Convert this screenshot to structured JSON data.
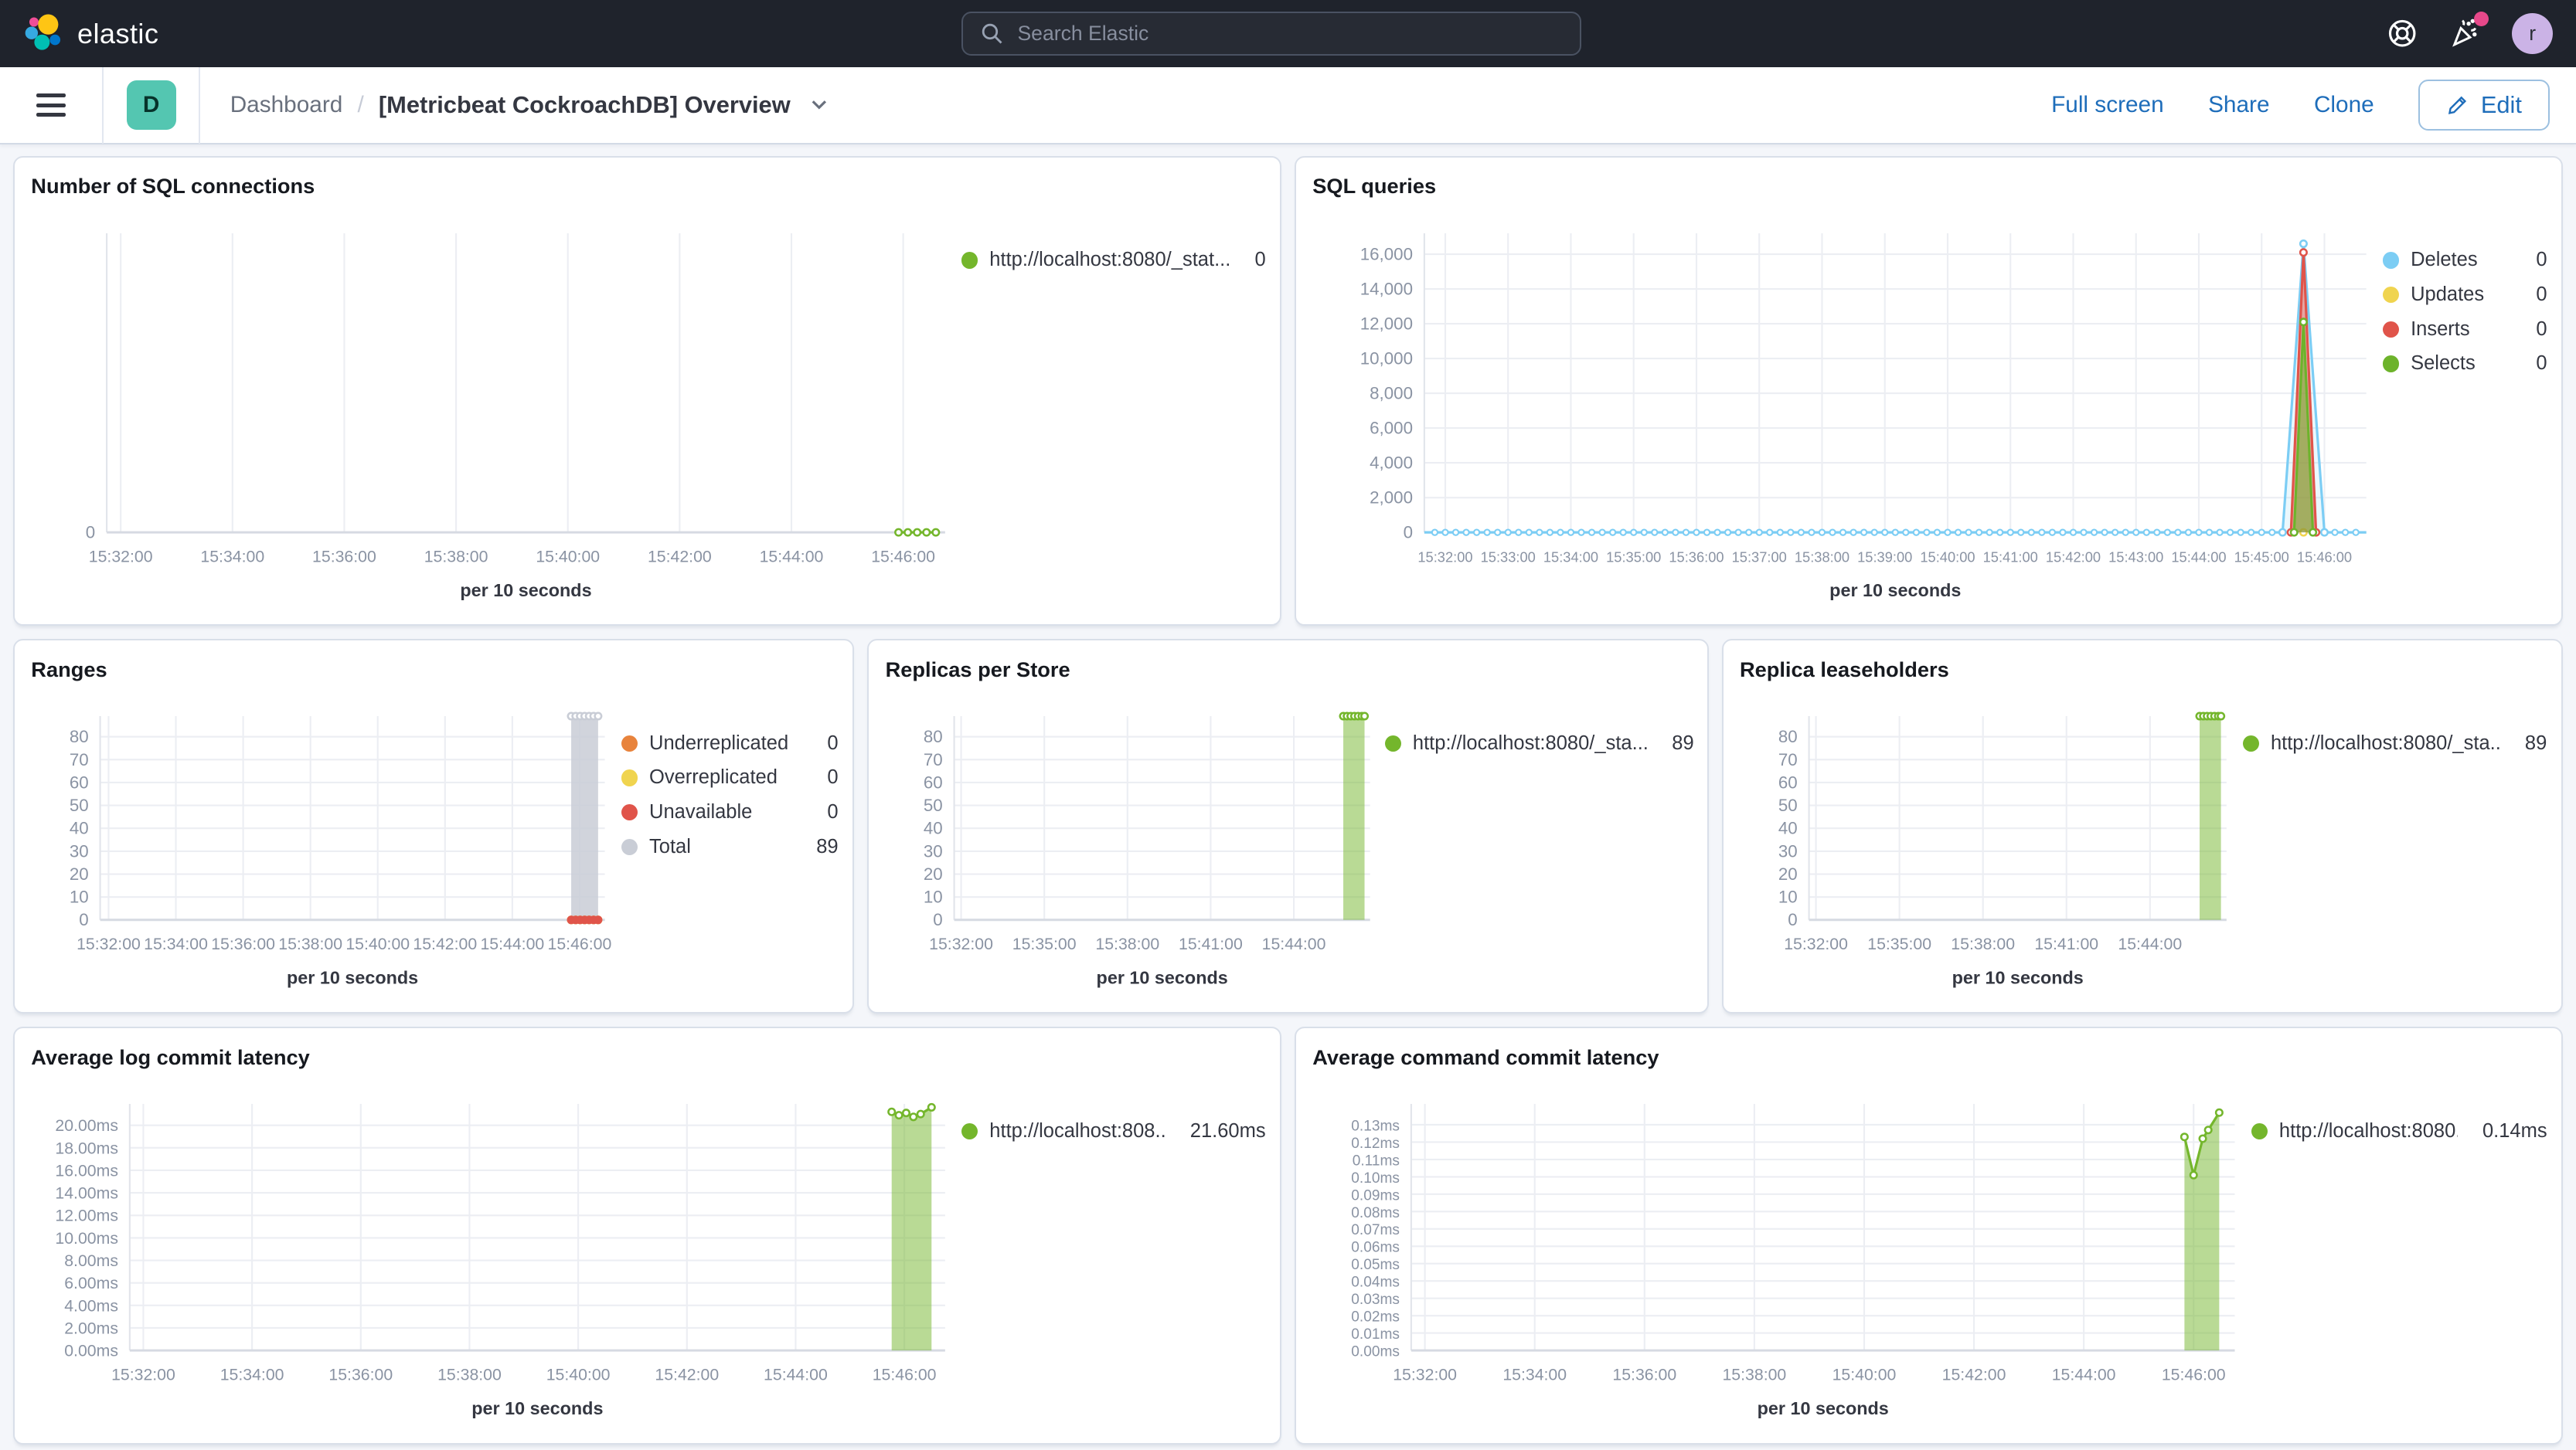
{
  "header": {
    "brand": "elastic",
    "search_placeholder": "Search Elastic",
    "avatar_initial": "r",
    "colors": {
      "header_bg": "#1F232C",
      "notification_dot": "#E7488A",
      "avatar_bg": "#CBB3E6",
      "badge_teal": "#54C6B1",
      "link_blue": "#1E6DBA"
    }
  },
  "navbar": {
    "space_badge": "D",
    "breadcrumb_root": "Dashboard",
    "breadcrumb_separator": "/",
    "title": "[Metricbeat CockroachDB] Overview",
    "actions": {
      "full_screen": "Full screen",
      "share": "Share",
      "clone": "Clone",
      "edit": "Edit"
    }
  },
  "panels": [
    {
      "id": "sql-connections",
      "title": "Number of SQL connections",
      "legend": [
        {
          "label": "http://localhost:8080/_stat...",
          "value": "0",
          "color": "#74B62C"
        }
      ],
      "chart_data": {
        "type": "line",
        "xlabel": "per 10 seconds",
        "x_domain": [
          "15:31:45",
          "15:46:45"
        ],
        "x_ticks": [
          "15:32:00",
          "15:34:00",
          "15:36:00",
          "15:38:00",
          "15:40:00",
          "15:42:00",
          "15:44:00",
          "15:46:00"
        ],
        "y_max": 1,
        "y_ticks": [
          [
            0,
            "0"
          ]
        ],
        "series": [
          {
            "name": "http://localhost:8080/_stat...",
            "color": "#74B62C",
            "markers": true,
            "points": [
              [
                "15:45:55",
                0
              ],
              [
                "15:46:05",
                0
              ],
              [
                "15:46:15",
                0
              ],
              [
                "15:46:25",
                0
              ],
              [
                "15:46:35",
                0
              ]
            ]
          }
        ]
      }
    },
    {
      "id": "sql-queries",
      "title": "SQL queries",
      "legend": [
        {
          "label": "Deletes",
          "value": "0",
          "color": "#7CCDF4"
        },
        {
          "label": "Updates",
          "value": "0",
          "color": "#F0D44F"
        },
        {
          "label": "Inserts",
          "value": "0",
          "color": "#E0544A"
        },
        {
          "label": "Selects",
          "value": "0",
          "color": "#6DB32B"
        }
      ],
      "chart_data": {
        "type": "area",
        "xlabel": "per 10 seconds",
        "x_domain": [
          "15:31:40",
          "15:46:40"
        ],
        "x_ticks": [
          "15:32:00",
          "15:33:00",
          "15:34:00",
          "15:35:00",
          "15:36:00",
          "15:37:00",
          "15:38:00",
          "15:39:00",
          "15:40:00",
          "15:41:00",
          "15:42:00",
          "15:43:00",
          "15:44:00",
          "15:45:00",
          "15:46:00"
        ],
        "y_max": 17200,
        "y_ticks": [
          [
            0,
            "0"
          ],
          [
            2000,
            "2,000"
          ],
          [
            4000,
            "4,000"
          ],
          [
            6000,
            "6,000"
          ],
          [
            8000,
            "8,000"
          ],
          [
            10000,
            "10,000"
          ],
          [
            12000,
            "12,000"
          ],
          [
            14000,
            "14,000"
          ],
          [
            16000,
            "16,000"
          ]
        ],
        "series": [
          {
            "name": "Deletes",
            "color": "#7CCDF4",
            "fill_opacity": 0.15,
            "markers": true,
            "zero_markers": true,
            "baseline": true,
            "points": [
              [
                "15:45:20",
                0
              ],
              [
                "15:45:40",
                16600
              ],
              [
                "15:46:00",
                0
              ]
            ]
          },
          {
            "name": "Updates",
            "color": "#F0D44F",
            "markers": true,
            "points": [
              [
                "15:45:40",
                0
              ]
            ]
          },
          {
            "name": "Inserts",
            "color": "#E0544A",
            "fill_opacity": 0.5,
            "markers": true,
            "points": [
              [
                "15:45:28",
                0
              ],
              [
                "15:45:40",
                16100
              ],
              [
                "15:45:52",
                0
              ]
            ]
          },
          {
            "name": "Selects",
            "color": "#6DB32B",
            "fill_opacity": 0.55,
            "markers": true,
            "points": [
              [
                "15:45:31",
                0
              ],
              [
                "15:45:40",
                12100
              ],
              [
                "15:45:49",
                0
              ]
            ]
          }
        ]
      }
    },
    {
      "id": "ranges",
      "title": "Ranges",
      "legend": [
        {
          "label": "Underreplicated",
          "value": "0",
          "color": "#E8833C"
        },
        {
          "label": "Overreplicated",
          "value": "0",
          "color": "#F0D44F"
        },
        {
          "label": "Unavailable",
          "value": "0",
          "color": "#E0544A"
        },
        {
          "label": "Total",
          "value": "89",
          "color": "#C9CDD6"
        }
      ],
      "chart_data": {
        "type": "area",
        "xlabel": "per 10 seconds",
        "x_domain": [
          "15:31:45",
          "15:46:45"
        ],
        "x_ticks": [
          "15:32:00",
          "15:34:00",
          "15:36:00",
          "15:38:00",
          "15:40:00",
          "15:42:00",
          "15:44:00",
          "15:46:00"
        ],
        "y_max": 89,
        "y_ticks": [
          [
            0,
            "0"
          ],
          [
            10,
            "10"
          ],
          [
            20,
            "20"
          ],
          [
            30,
            "30"
          ],
          [
            40,
            "40"
          ],
          [
            50,
            "50"
          ],
          [
            60,
            "60"
          ],
          [
            70,
            "70"
          ],
          [
            80,
            "80"
          ]
        ],
        "series": [
          {
            "name": "Total",
            "color": "#C9CDD6",
            "fill_opacity": 0.85,
            "markers": true,
            "points": [
              [
                "15:45:45",
                89
              ],
              [
                "15:45:53",
                89
              ],
              [
                "15:46:01",
                89
              ],
              [
                "15:46:09",
                89
              ],
              [
                "15:46:17",
                89
              ],
              [
                "15:46:25",
                89
              ],
              [
                "15:46:33",
                89
              ]
            ]
          },
          {
            "name": "Underreplicated",
            "color": "#E8833C",
            "markers": true,
            "marker_fill": "solid",
            "points": [
              [
                "15:45:45",
                0
              ],
              [
                "15:45:53",
                0
              ],
              [
                "15:46:01",
                0
              ],
              [
                "15:46:09",
                0
              ],
              [
                "15:46:17",
                0
              ],
              [
                "15:46:25",
                0
              ],
              [
                "15:46:33",
                0
              ]
            ]
          },
          {
            "name": "Overreplicated",
            "color": "#F0D44F",
            "markers": true,
            "marker_fill": "solid",
            "points": [
              [
                "15:45:45",
                0
              ],
              [
                "15:45:53",
                0
              ],
              [
                "15:46:01",
                0
              ],
              [
                "15:46:09",
                0
              ],
              [
                "15:46:17",
                0
              ],
              [
                "15:46:25",
                0
              ],
              [
                "15:46:33",
                0
              ]
            ]
          },
          {
            "name": "Unavailable",
            "color": "#E0544A",
            "markers": true,
            "marker_fill": "solid",
            "points": [
              [
                "15:45:45",
                0
              ],
              [
                "15:45:53",
                0
              ],
              [
                "15:46:01",
                0
              ],
              [
                "15:46:09",
                0
              ],
              [
                "15:46:17",
                0
              ],
              [
                "15:46:25",
                0
              ],
              [
                "15:46:33",
                0
              ]
            ]
          }
        ]
      }
    },
    {
      "id": "replicas-per-store",
      "title": "Replicas per Store",
      "legend": [
        {
          "label": "http://localhost:8080/_sta...",
          "value": "89",
          "color": "#74B62C"
        }
      ],
      "chart_data": {
        "type": "area",
        "xlabel": "per 10 seconds",
        "x_domain": [
          "15:31:45",
          "15:46:45"
        ],
        "x_ticks": [
          "15:32:00",
          "15:35:00",
          "15:38:00",
          "15:41:00",
          "15:44:00"
        ],
        "y_max": 89,
        "y_ticks": [
          [
            0,
            "0"
          ],
          [
            10,
            "10"
          ],
          [
            20,
            "20"
          ],
          [
            30,
            "30"
          ],
          [
            40,
            "40"
          ],
          [
            50,
            "50"
          ],
          [
            60,
            "60"
          ],
          [
            70,
            "70"
          ],
          [
            80,
            "80"
          ]
        ],
        "series": [
          {
            "name": "http://localhost:8080/_sta...",
            "color": "#74B62C",
            "fill_opacity": 0.5,
            "markers": true,
            "points": [
              [
                "15:45:47",
                89
              ],
              [
                "15:45:55",
                89
              ],
              [
                "15:46:03",
                89
              ],
              [
                "15:46:11",
                89
              ],
              [
                "15:46:19",
                89
              ],
              [
                "15:46:27",
                89
              ],
              [
                "15:46:33",
                89
              ]
            ]
          }
        ]
      }
    },
    {
      "id": "replica-leaseholders",
      "title": "Replica leaseholders",
      "legend": [
        {
          "label": "http://localhost:8080/_sta...",
          "value": "89",
          "color": "#74B62C"
        }
      ],
      "chart_data": {
        "type": "area",
        "xlabel": "per 10 seconds",
        "x_domain": [
          "15:31:45",
          "15:46:45"
        ],
        "x_ticks": [
          "15:32:00",
          "15:35:00",
          "15:38:00",
          "15:41:00",
          "15:44:00"
        ],
        "y_max": 89,
        "y_ticks": [
          [
            0,
            "0"
          ],
          [
            10,
            "10"
          ],
          [
            20,
            "20"
          ],
          [
            30,
            "30"
          ],
          [
            40,
            "40"
          ],
          [
            50,
            "50"
          ],
          [
            60,
            "60"
          ],
          [
            70,
            "70"
          ],
          [
            80,
            "80"
          ]
        ],
        "series": [
          {
            "name": "http://localhost:8080/_sta...",
            "color": "#74B62C",
            "fill_opacity": 0.5,
            "markers": true,
            "points": [
              [
                "15:45:47",
                89
              ],
              [
                "15:45:55",
                89
              ],
              [
                "15:46:03",
                89
              ],
              [
                "15:46:11",
                89
              ],
              [
                "15:46:19",
                89
              ],
              [
                "15:46:27",
                89
              ],
              [
                "15:46:33",
                89
              ]
            ]
          }
        ]
      }
    },
    {
      "id": "avg-log-commit-latency",
      "title": "Average log commit latency",
      "legend": [
        {
          "label": "http://localhost:808...",
          "value": "21.60ms",
          "color": "#74B62C"
        }
      ],
      "chart_data": {
        "type": "area",
        "xlabel": "per 10 seconds",
        "x_domain": [
          "15:31:45",
          "15:46:45"
        ],
        "x_ticks": [
          "15:32:00",
          "15:34:00",
          "15:36:00",
          "15:38:00",
          "15:40:00",
          "15:42:00",
          "15:44:00",
          "15:46:00"
        ],
        "y_max": 21.9,
        "y_ticks": [
          [
            0,
            "0.00ms"
          ],
          [
            2,
            "2.00ms"
          ],
          [
            4,
            "4.00ms"
          ],
          [
            6,
            "6.00ms"
          ],
          [
            8,
            "8.00ms"
          ],
          [
            10,
            "10.00ms"
          ],
          [
            12,
            "12.00ms"
          ],
          [
            14,
            "14.00ms"
          ],
          [
            16,
            "16.00ms"
          ],
          [
            18,
            "18.00ms"
          ],
          [
            20,
            "20.00ms"
          ]
        ],
        "series": [
          {
            "name": "http://localhost:808...",
            "color": "#74B62C",
            "fill_opacity": 0.5,
            "markers": true,
            "points": [
              [
                "15:45:46",
                21.2
              ],
              [
                "15:45:54",
                20.9
              ],
              [
                "15:46:02",
                21.1
              ],
              [
                "15:46:10",
                20.75
              ],
              [
                "15:46:18",
                21.0
              ],
              [
                "15:46:30",
                21.6
              ]
            ]
          }
        ]
      }
    },
    {
      "id": "avg-command-commit-latency",
      "title": "Average command commit latency",
      "legend": [
        {
          "label": "http://localhost:8080...",
          "value": "0.14ms",
          "color": "#74B62C"
        }
      ],
      "chart_data": {
        "type": "area",
        "xlabel": "per 10 seconds",
        "x_domain": [
          "15:31:45",
          "15:46:45"
        ],
        "x_ticks": [
          "15:32:00",
          "15:34:00",
          "15:36:00",
          "15:38:00",
          "15:40:00",
          "15:42:00",
          "15:44:00",
          "15:46:00"
        ],
        "y_max": 0.142,
        "y_ticks": [
          [
            0,
            "0.00ms"
          ],
          [
            0.01,
            "0.01ms"
          ],
          [
            0.02,
            "0.02ms"
          ],
          [
            0.03,
            "0.03ms"
          ],
          [
            0.04,
            "0.04ms"
          ],
          [
            0.05,
            "0.05ms"
          ],
          [
            0.06,
            "0.06ms"
          ],
          [
            0.07,
            "0.07ms"
          ],
          [
            0.08,
            "0.08ms"
          ],
          [
            0.09,
            "0.09ms"
          ],
          [
            0.1,
            "0.10ms"
          ],
          [
            0.11,
            "0.11ms"
          ],
          [
            0.12,
            "0.12ms"
          ],
          [
            0.13,
            "0.13ms"
          ]
        ],
        "series": [
          {
            "name": "http://localhost:8080...",
            "color": "#74B62C",
            "fill_opacity": 0.5,
            "markers": true,
            "points": [
              [
                "15:45:50",
                0.123
              ],
              [
                "15:46:00",
                0.101
              ],
              [
                "15:46:10",
                0.122
              ],
              [
                "15:46:16",
                0.127
              ],
              [
                "15:46:28",
                0.137
              ]
            ]
          }
        ]
      }
    }
  ]
}
